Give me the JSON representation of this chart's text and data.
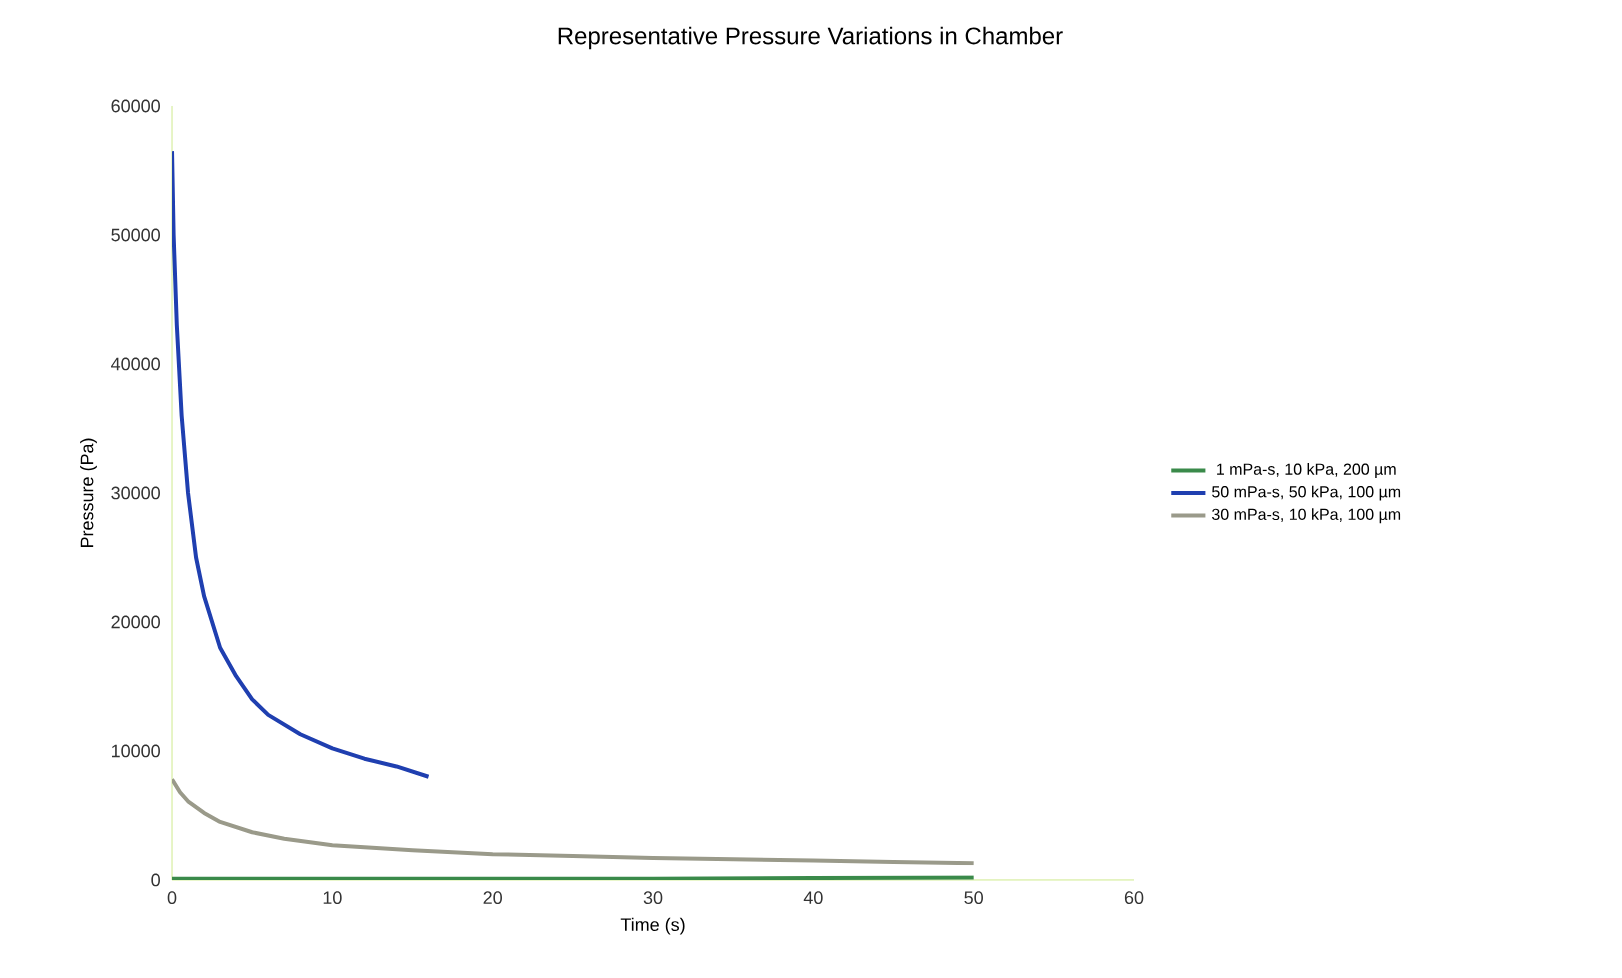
{
  "chart_data": {
    "type": "line",
    "title": "Representative Pressure Variations in  Chamber",
    "xlabel": "Time (s)",
    "ylabel": "Pressure (Pa)",
    "xlim": [
      0,
      60
    ],
    "ylim": [
      0,
      60000
    ],
    "xticks": [
      0,
      10,
      20,
      30,
      40,
      50,
      60
    ],
    "yticks": [
      0,
      10000,
      20000,
      30000,
      40000,
      50000,
      60000
    ],
    "grid": false,
    "legend": "right",
    "marker": "none",
    "line_style": "solid",
    "series": [
      {
        "name": "1 mPa-s, 10 kPa, 200 µm",
        "color": "#3a8a4a",
        "x": [
          0,
          10,
          20,
          30,
          40,
          50
        ],
        "values": [
          100,
          100,
          100,
          100,
          150,
          200
        ]
      },
      {
        "name": "50 mPa-s, 50 kPa, 100 µm",
        "color": "#1f3fb0",
        "x": [
          0,
          0.1,
          0.3,
          0.6,
          1,
          1.5,
          2,
          3,
          4,
          5,
          6,
          8,
          10,
          12,
          14,
          16
        ],
        "values": [
          56500,
          50000,
          43000,
          36000,
          30000,
          25000,
          22000,
          18000,
          15800,
          14000,
          12800,
          11300,
          10200,
          9400,
          8800,
          8000
        ]
      },
      {
        "name": "30 mPa-s, 10 kPa, 100 µm",
        "color": "#9a9a8a",
        "x": [
          0,
          0.5,
          1,
          2,
          3,
          5,
          7,
          10,
          15,
          20,
          25,
          30,
          35,
          40,
          45,
          50
        ],
        "values": [
          7800,
          6800,
          6100,
          5200,
          4500,
          3700,
          3200,
          2700,
          2300,
          2000,
          1850,
          1700,
          1600,
          1500,
          1400,
          1300
        ]
      }
    ]
  }
}
